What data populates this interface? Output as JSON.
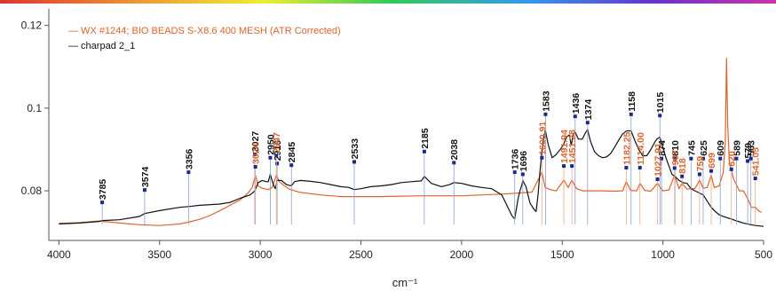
{
  "chart_data": {
    "type": "line",
    "xlabel": "cm⁻¹",
    "ylabel": "",
    "xlim": [
      4050,
      500
    ],
    "ylim": [
      0.068,
      0.124
    ],
    "x_ticks": [
      4000,
      3500,
      3000,
      2500,
      2000,
      1500,
      1000,
      500
    ],
    "y_ticks": [
      0.08,
      0.1,
      0.12
    ],
    "y_tick_labels": [
      "0.08",
      "0.1",
      "0.12"
    ],
    "legend_position": "top-left",
    "series": [
      {
        "name": "— WX #1244; BIO BEADS S-X8.6 400 MESH (ATR Corrected)",
        "color": "#e0632d",
        "points": [
          [
            4000,
            0.0721
          ],
          [
            3900,
            0.0723
          ],
          [
            3800,
            0.0727
          ],
          [
            3700,
            0.0722
          ],
          [
            3600,
            0.0718
          ],
          [
            3500,
            0.0716
          ],
          [
            3450,
            0.0718
          ],
          [
            3400,
            0.072
          ],
          [
            3350,
            0.0725
          ],
          [
            3300,
            0.0731
          ],
          [
            3250,
            0.074
          ],
          [
            3200,
            0.0752
          ],
          [
            3150,
            0.0765
          ],
          [
            3100,
            0.0778
          ],
          [
            3060,
            0.0795
          ],
          [
            3040,
            0.0808
          ],
          [
            3024,
            0.0838
          ],
          [
            3010,
            0.0812
          ],
          [
            2990,
            0.0806
          ],
          [
            2960,
            0.0803
          ],
          [
            2940,
            0.0808
          ],
          [
            2920,
            0.0838
          ],
          [
            2905,
            0.0822
          ],
          [
            2880,
            0.0812
          ],
          [
            2850,
            0.0803
          ],
          [
            2800,
            0.0796
          ],
          [
            2700,
            0.079
          ],
          [
            2600,
            0.0786
          ],
          [
            2500,
            0.0786
          ],
          [
            2400,
            0.0786
          ],
          [
            2300,
            0.0787
          ],
          [
            2200,
            0.0788
          ],
          [
            2100,
            0.0788
          ],
          [
            2000,
            0.0788
          ],
          [
            1900,
            0.079
          ],
          [
            1800,
            0.0792
          ],
          [
            1700,
            0.0795
          ],
          [
            1650,
            0.0797
          ],
          [
            1601,
            0.0845
          ],
          [
            1585,
            0.0808
          ],
          [
            1560,
            0.0803
          ],
          [
            1530,
            0.08
          ],
          [
            1492,
            0.0826
          ],
          [
            1470,
            0.0808
          ],
          [
            1452,
            0.0826
          ],
          [
            1430,
            0.0806
          ],
          [
            1400,
            0.08
          ],
          [
            1350,
            0.08
          ],
          [
            1300,
            0.08
          ],
          [
            1250,
            0.0799
          ],
          [
            1200,
            0.08
          ],
          [
            1182,
            0.0822
          ],
          [
            1160,
            0.0801
          ],
          [
            1130,
            0.08
          ],
          [
            1114,
            0.0818
          ],
          [
            1090,
            0.0801
          ],
          [
            1060,
            0.0799
          ],
          [
            1027,
            0.0818
          ],
          [
            1000,
            0.08
          ],
          [
            970,
            0.0802
          ],
          [
            942,
            0.0838
          ],
          [
            920,
            0.0805
          ],
          [
            905,
            0.0818
          ],
          [
            880,
            0.0804
          ],
          [
            840,
            0.0806
          ],
          [
            818,
            0.0826
          ],
          [
            800,
            0.0806
          ],
          [
            780,
            0.0808
          ],
          [
            760,
            0.0838
          ],
          [
            745,
            0.0808
          ],
          [
            720,
            0.0812
          ],
          [
            700,
            0.0845
          ],
          [
            690,
            0.092
          ],
          [
            684,
            0.112
          ],
          [
            678,
            0.096
          ],
          [
            670,
            0.087
          ],
          [
            650,
            0.083
          ],
          [
            620,
            0.08
          ],
          [
            600,
            0.08
          ],
          [
            580,
            0.0782
          ],
          [
            560,
            0.076
          ],
          [
            541,
            0.076
          ],
          [
            530,
            0.0754
          ],
          [
            520,
            0.075
          ],
          [
            510,
            0.0748
          ]
        ]
      },
      {
        "name": "— charpad 2_1",
        "color": "#111111",
        "points": [
          [
            4000,
            0.072
          ],
          [
            3900,
            0.0722
          ],
          [
            3800,
            0.0726
          ],
          [
            3785,
            0.0728
          ],
          [
            3700,
            0.073
          ],
          [
            3600,
            0.0738
          ],
          [
            3574,
            0.0745
          ],
          [
            3500,
            0.0752
          ],
          [
            3400,
            0.076
          ],
          [
            3356,
            0.0762
          ],
          [
            3300,
            0.0765
          ],
          [
            3200,
            0.0768
          ],
          [
            3150,
            0.0772
          ],
          [
            3100,
            0.0782
          ],
          [
            3050,
            0.079
          ],
          [
            3027,
            0.08
          ],
          [
            3010,
            0.082
          ],
          [
            2990,
            0.0825
          ],
          [
            2970,
            0.0822
          ],
          [
            2960,
            0.0822
          ],
          [
            2950,
            0.084
          ],
          [
            2935,
            0.0815
          ],
          [
            2925,
            0.0805
          ],
          [
            2916,
            0.0825
          ],
          [
            2895,
            0.0825
          ],
          [
            2870,
            0.0815
          ],
          [
            2845,
            0.0812
          ],
          [
            2830,
            0.0822
          ],
          [
            2800,
            0.0825
          ],
          [
            2750,
            0.0823
          ],
          [
            2700,
            0.082
          ],
          [
            2650,
            0.0815
          ],
          [
            2600,
            0.081
          ],
          [
            2560,
            0.0808
          ],
          [
            2533,
            0.0803
          ],
          [
            2500,
            0.0805
          ],
          [
            2450,
            0.081
          ],
          [
            2400,
            0.0812
          ],
          [
            2350,
            0.0815
          ],
          [
            2300,
            0.082
          ],
          [
            2250,
            0.0822
          ],
          [
            2200,
            0.0824
          ],
          [
            2185,
            0.0835
          ],
          [
            2150,
            0.0818
          ],
          [
            2100,
            0.081
          ],
          [
            2060,
            0.0815
          ],
          [
            2038,
            0.082
          ],
          [
            2000,
            0.0818
          ],
          [
            1950,
            0.0812
          ],
          [
            1900,
            0.0808
          ],
          [
            1850,
            0.0805
          ],
          [
            1800,
            0.079
          ],
          [
            1770,
            0.076
          ],
          [
            1750,
            0.074
          ],
          [
            1736,
            0.0732
          ],
          [
            1720,
            0.078
          ],
          [
            1710,
            0.08
          ],
          [
            1700,
            0.0815
          ],
          [
            1696,
            0.0825
          ],
          [
            1680,
            0.081
          ],
          [
            1660,
            0.077
          ],
          [
            1640,
            0.0755
          ],
          [
            1630,
            0.075
          ],
          [
            1620,
            0.079
          ],
          [
            1610,
            0.085
          ],
          [
            1600,
            0.09
          ],
          [
            1590,
            0.0935
          ],
          [
            1583,
            0.0945
          ],
          [
            1570,
            0.0912
          ],
          [
            1550,
            0.088
          ],
          [
            1530,
            0.0888
          ],
          [
            1510,
            0.09
          ],
          [
            1495,
            0.091
          ],
          [
            1480,
            0.093
          ],
          [
            1465,
            0.0935
          ],
          [
            1455,
            0.091
          ],
          [
            1445,
            0.0938
          ],
          [
            1436,
            0.0942
          ],
          [
            1420,
            0.0925
          ],
          [
            1400,
            0.0925
          ],
          [
            1385,
            0.094
          ],
          [
            1374,
            0.0948
          ],
          [
            1360,
            0.092
          ],
          [
            1340,
            0.0895
          ],
          [
            1320,
            0.0885
          ],
          [
            1300,
            0.088
          ],
          [
            1280,
            0.0882
          ],
          [
            1260,
            0.089
          ],
          [
            1240,
            0.0905
          ],
          [
            1220,
            0.0922
          ],
          [
            1200,
            0.0938
          ],
          [
            1180,
            0.0945
          ],
          [
            1158,
            0.0945
          ],
          [
            1140,
            0.0922
          ],
          [
            1120,
            0.09
          ],
          [
            1100,
            0.0885
          ],
          [
            1080,
            0.0885
          ],
          [
            1060,
            0.09
          ],
          [
            1040,
            0.0918
          ],
          [
            1030,
            0.0925
          ],
          [
            1015,
            0.093
          ],
          [
            1000,
            0.0905
          ],
          [
            985,
            0.088
          ],
          [
            970,
            0.086
          ],
          [
            955,
            0.084
          ],
          [
            940,
            0.0835
          ],
          [
            920,
            0.0825
          ],
          [
            900,
            0.082
          ],
          [
            880,
            0.0818
          ],
          [
            860,
            0.0805
          ],
          [
            840,
            0.08
          ],
          [
            820,
            0.0795
          ],
          [
            800,
            0.079
          ],
          [
            780,
            0.0775
          ],
          [
            760,
            0.076
          ],
          [
            740,
            0.075
          ],
          [
            720,
            0.0742
          ],
          [
            700,
            0.0738
          ],
          [
            680,
            0.0735
          ],
          [
            660,
            0.0732
          ],
          [
            640,
            0.0728
          ],
          [
            620,
            0.0725
          ],
          [
            600,
            0.0722
          ],
          [
            579,
            0.072
          ],
          [
            563,
            0.0718
          ],
          [
            540,
            0.0716
          ],
          [
            520,
            0.0715
          ],
          [
            500,
            0.0714
          ]
        ]
      }
    ],
    "peaks_black": [
      {
        "x": 3785,
        "label": "3785",
        "y": 0.0772
      },
      {
        "x": 3574,
        "label": "3574",
        "y": 0.0802
      },
      {
        "x": 3356,
        "label": "3356",
        "y": 0.0845
      },
      {
        "x": 3027,
        "label": "3027",
        "y": 0.0888
      },
      {
        "x": 2950,
        "label": "2950",
        "y": 0.088
      },
      {
        "x": 2916,
        "label": "2916",
        "y": 0.0866
      },
      {
        "x": 2845,
        "label": "2845",
        "y": 0.0862
      },
      {
        "x": 2533,
        "label": "2533",
        "y": 0.087
      },
      {
        "x": 2185,
        "label": "2185",
        "y": 0.0895
      },
      {
        "x": 2038,
        "label": "2038",
        "y": 0.0868
      },
      {
        "x": 1736,
        "label": "1736",
        "y": 0.0845
      },
      {
        "x": 1696,
        "label": "1696",
        "y": 0.084
      },
      {
        "x": 1583,
        "label": "1583",
        "y": 0.0985
      },
      {
        "x": 1436,
        "label": "1436",
        "y": 0.098
      },
      {
        "x": 1374,
        "label": "1374",
        "y": 0.0965
      },
      {
        "x": 1158,
        "label": "1158",
        "y": 0.0985
      },
      {
        "x": 1015,
        "label": "1015",
        "y": 0.0982
      },
      {
        "x": 1007,
        "label": "874",
        "y": 0.0878
      },
      {
        "x": 940,
        "label": "810",
        "y": 0.0878
      },
      {
        "x": 860,
        "label": "745",
        "y": 0.0878
      },
      {
        "x": 800,
        "label": "625",
        "y": 0.0878
      },
      {
        "x": 715,
        "label": "609",
        "y": 0.0878
      },
      {
        "x": 635,
        "label": "589",
        "y": 0.0878
      },
      {
        "x": 579,
        "label": "579",
        "y": 0.0872
      },
      {
        "x": 563,
        "label": "563",
        "y": 0.0878
      }
    ],
    "peaks_orange": [
      {
        "x": 3024,
        "label": "3024",
        "y": 0.0858
      },
      {
        "x": 2920,
        "label": "2947",
        "y": 0.0885
      },
      {
        "x": 1601,
        "label": "1600.91",
        "y": 0.088
      },
      {
        "x": 1492,
        "label": "1491.94",
        "y": 0.086
      },
      {
        "x": 1452,
        "label": "1451.28",
        "y": 0.086
      },
      {
        "x": 1182,
        "label": "1182.25",
        "y": 0.0856
      },
      {
        "x": 1114,
        "label": "1114.00",
        "y": 0.0856
      },
      {
        "x": 1027,
        "label": "1027.91",
        "y": 0.0828
      },
      {
        "x": 942,
        "label": "907",
        "y": 0.0855
      },
      {
        "x": 905,
        "label": "818",
        "y": 0.0835
      },
      {
        "x": 818,
        "label": "759",
        "y": 0.084
      },
      {
        "x": 760,
        "label": "699",
        "y": 0.0848
      },
      {
        "x": 660,
        "label": "620",
        "y": 0.0852
      },
      {
        "x": 541,
        "label": "541.05",
        "y": 0.083
      }
    ]
  }
}
